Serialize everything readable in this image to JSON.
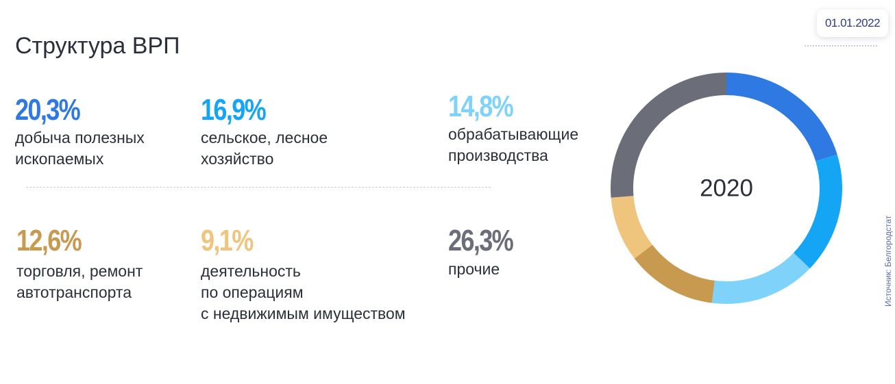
{
  "header": {
    "title": "Структура ВРП",
    "date": "01.01.2022"
  },
  "stats": [
    {
      "value": "20,3%",
      "label_lines": [
        "добыча полезных",
        "ископаемых"
      ],
      "color": "#2f79e3"
    },
    {
      "value": "16,9%",
      "label_lines": [
        "сельское, лесное",
        "хозяйство"
      ],
      "color": "#14a5f5"
    },
    {
      "value": "14,8%",
      "label_lines": [
        "обрабатывающие",
        "производства"
      ],
      "color": "#7fd3fb"
    },
    {
      "value": "12,6%",
      "label_lines": [
        "торговля, ремонт",
        "автотранспорта"
      ],
      "color": "#c79a50"
    },
    {
      "value": "9,1%",
      "label_lines": [
        "деятельность",
        "по операциям",
        "с недвижимым имуществом"
      ],
      "color": "#efc47c"
    },
    {
      "value": "26,3%",
      "label_lines": [
        "прочие"
      ],
      "color": "#6b6e78"
    }
  ],
  "chart_data": {
    "type": "pie",
    "variant": "donut",
    "center_label": "2020",
    "slices": [
      {
        "label": "добыча полезных ископаемых",
        "value": 20.3,
        "color": "#2f79e3"
      },
      {
        "label": "сельское, лесное хозяйство",
        "value": 16.9,
        "color": "#14a5f5"
      },
      {
        "label": "обрабатывающие производства",
        "value": 14.8,
        "color": "#7fd3fb"
      },
      {
        "label": "торговля, ремонт автотранспорта",
        "value": 12.6,
        "color": "#c79a50"
      },
      {
        "label": "деятельность по операциям с недвижимым имуществом",
        "value": 9.1,
        "color": "#efc47c"
      },
      {
        "label": "прочие",
        "value": 26.3,
        "color": "#6b6e78"
      }
    ]
  },
  "source": "Источник: Белгородстат"
}
